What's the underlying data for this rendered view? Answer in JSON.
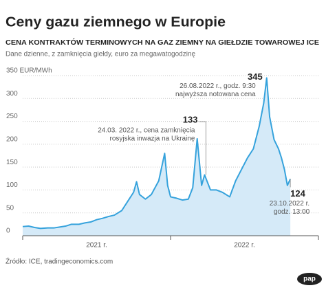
{
  "chart_data": {
    "type": "area",
    "title": "Ceny gazu ziemnego w Europie",
    "subtitle": "CENA KONTRAKTÓW TERMINOWYCH NA GAZ ZIEMNY NA GIEŁDZIE TOWAROWEJ ICE",
    "description": "Dane dzienne, z zamknięcia giełdy, euro za megawatogodzinę",
    "source": "Źródło: ICE, tradingeconomics.com",
    "logo": "pap",
    "color": "#35a2dc",
    "fill": "#d5eaf8",
    "grid": true,
    "x": [
      2021.0,
      2021.04,
      2021.08,
      2021.12,
      2021.17,
      2021.21,
      2021.25,
      2021.29,
      2021.33,
      2021.38,
      2021.42,
      2021.46,
      2021.5,
      2021.54,
      2021.58,
      2021.62,
      2021.67,
      2021.71,
      2021.75,
      2021.77,
      2021.79,
      2021.83,
      2021.87,
      2021.92,
      2021.96,
      2021.98,
      2022.0,
      2022.04,
      2022.08,
      2022.12,
      2022.15,
      2022.18,
      2022.21,
      2022.23,
      2022.27,
      2022.31,
      2022.35,
      2022.4,
      2022.44,
      2022.48,
      2022.52,
      2022.56,
      2022.6,
      2022.63,
      2022.65,
      2022.67,
      2022.7,
      2022.73,
      2022.75,
      2022.77,
      2022.79,
      2022.81
    ],
    "values": [
      20,
      21,
      18,
      16,
      17,
      17,
      19,
      21,
      25,
      25,
      28,
      30,
      35,
      38,
      42,
      45,
      55,
      75,
      95,
      118,
      90,
      80,
      90,
      120,
      180,
      110,
      85,
      82,
      78,
      80,
      105,
      212,
      110,
      133,
      100,
      100,
      95,
      85,
      120,
      145,
      170,
      190,
      240,
      290,
      345,
      260,
      210,
      190,
      170,
      145,
      110,
      124
    ],
    "xlim": [
      2021,
      2023
    ],
    "xticks": [
      {
        "value": 2021.5,
        "label": "2021 r."
      },
      {
        "value": 2022.5,
        "label": "2022 r."
      }
    ],
    "ylim": [
      0,
      350
    ],
    "yticks": [
      0,
      50,
      100,
      150,
      200,
      250,
      300,
      {
        "value": 350,
        "label": "350 EUR/MWh"
      }
    ],
    "annotations": [
      {
        "x": 2022.23,
        "value": 133,
        "note": [
          "24.03. 2022 r., cena zamknięcia",
          "rosyjska inwazja na Ukrainę"
        ]
      },
      {
        "x": 2022.65,
        "value": 345,
        "note": [
          "26.08.2022 r., godz. 9:30",
          "najwyższa notowana cena"
        ]
      },
      {
        "x": 2022.81,
        "value": 124,
        "note": [
          "23.10.2022 r.",
          "godz. 13:00"
        ]
      }
    ]
  }
}
